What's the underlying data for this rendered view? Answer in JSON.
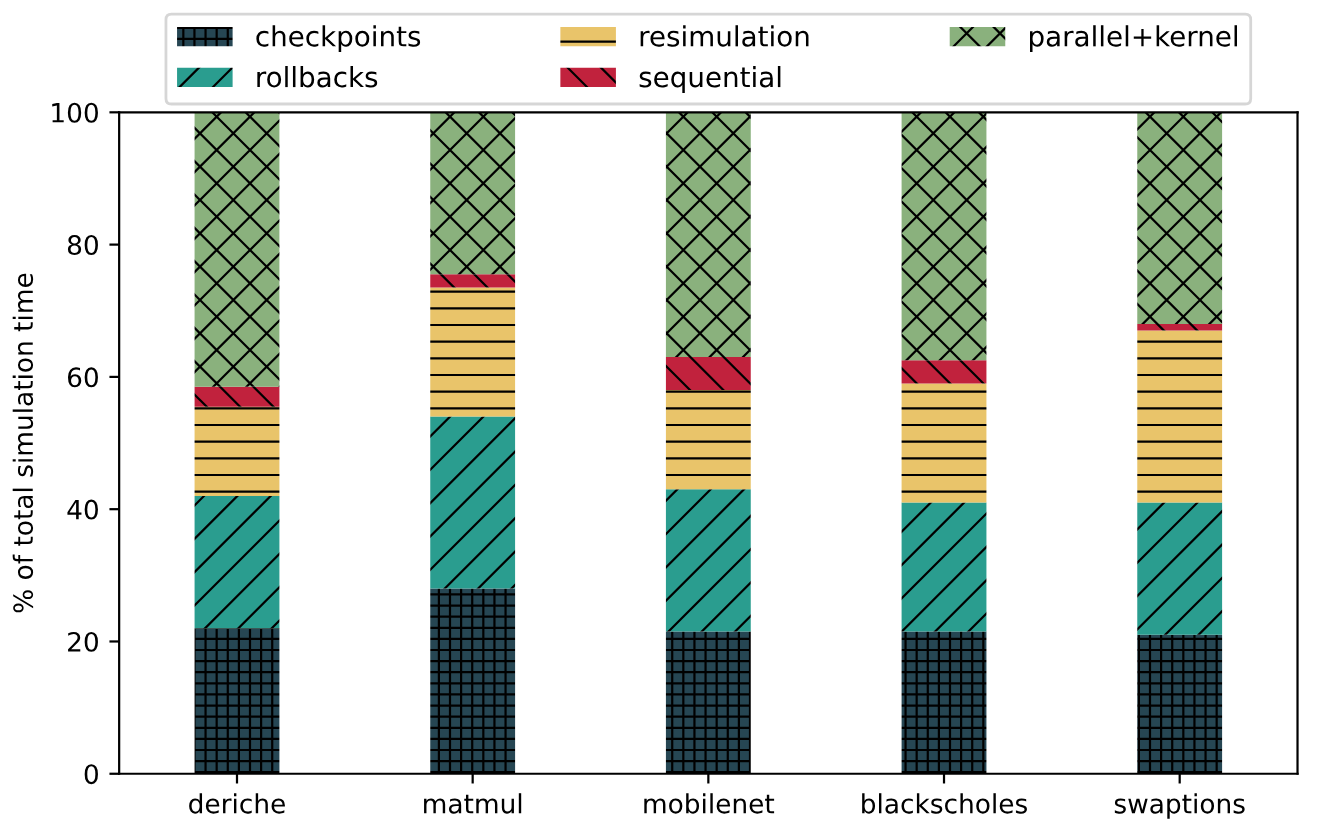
{
  "chart_data": {
    "type": "bar",
    "stacked": true,
    "ylabel": "% of total simulation time",
    "categories": [
      "deriche",
      "matmul",
      "mobilenet",
      "blackscholes",
      "swaptions"
    ],
    "series": [
      {
        "name": "checkpoints",
        "color": "#264653",
        "values": [
          22,
          28,
          21.5,
          21.5,
          21
        ]
      },
      {
        "name": "rollbacks",
        "color": "#2a9d8f",
        "values": [
          20,
          26,
          21.5,
          19.5,
          20
        ]
      },
      {
        "name": "resimulation",
        "color": "#e9c46a",
        "values": [
          13.5,
          19.5,
          15,
          18,
          26
        ]
      },
      {
        "name": "sequential",
        "color": "#c1223d",
        "values": [
          3,
          2,
          5,
          3.5,
          1
        ]
      },
      {
        "name": "parallel+kernel",
        "color": "#8ab17d",
        "values": [
          41.5,
          24.5,
          37,
          37.5,
          32
        ]
      }
    ],
    "ylim": [
      0,
      100
    ],
    "yticks": [
      0,
      20,
      40,
      60,
      80,
      100
    ],
    "grid": false,
    "legend": "top"
  }
}
